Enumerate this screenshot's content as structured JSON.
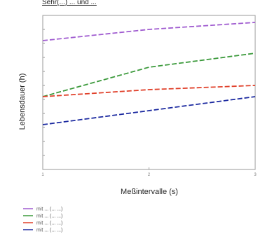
{
  "chart_data": {
    "type": "line",
    "title": "Sehr(...) ... und ...",
    "xlabel": "Meßintervalle (s)",
    "ylabel": "Lebensdauer (h)",
    "x": [
      1,
      2,
      3
    ],
    "x_tick_labels": [
      "1",
      "2",
      "3"
    ],
    "xlim": [
      1,
      3
    ],
    "y_tick_labels": [
      "",
      "",
      "",
      "",
      "",
      "",
      "",
      "",
      "",
      "",
      ""
    ],
    "series": [
      {
        "name": "",
        "color": "#a05cd0",
        "values": [
          9.2,
          10.0,
          10.5
        ]
      },
      {
        "name": "",
        "color": "#3c9a3c",
        "values": [
          5.2,
          7.3,
          8.3
        ]
      },
      {
        "name": "",
        "color": "#e0402a",
        "values": [
          5.2,
          5.7,
          6.0
        ]
      },
      {
        "name": "",
        "color": "#1c2aa0",
        "values": [
          3.2,
          4.2,
          5.2
        ]
      }
    ],
    "legend_entries": [
      "mit ... (... ...)",
      "mit ... (... ...)",
      "mit ... (... ...)",
      "mit ... (... ...)"
    ],
    "legend_position": "bottom-left",
    "grid": false
  }
}
